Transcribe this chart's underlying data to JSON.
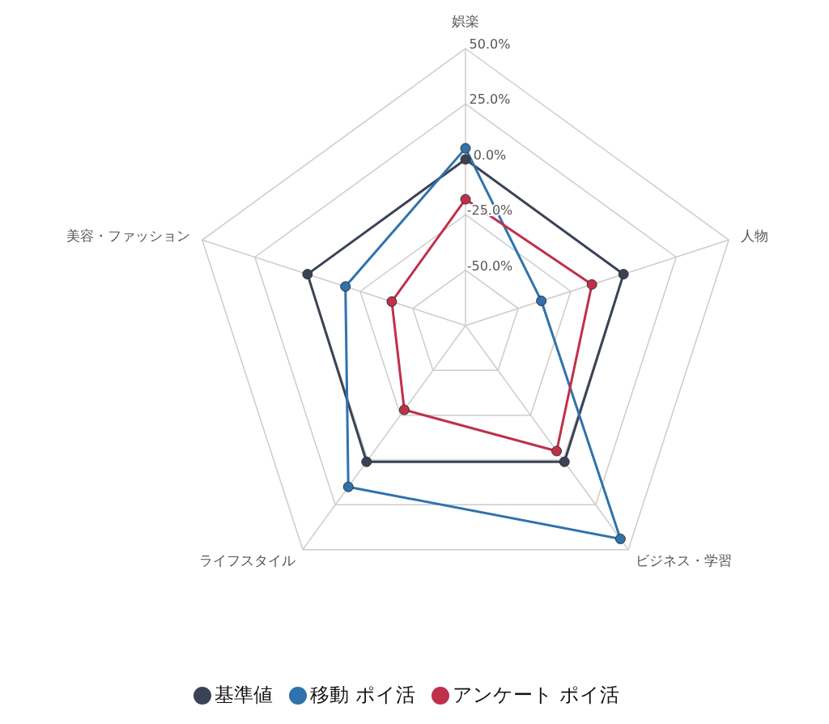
{
  "chart_data": {
    "type": "radar",
    "categories": [
      "娯楽",
      "人物",
      "ビジネス・学習",
      "ライフスタイル",
      "美容・ファッション"
    ],
    "series": [
      {
        "name": "基準値",
        "color": "#3a4256",
        "values": [
          0,
          0,
          1,
          1,
          0
        ]
      },
      {
        "name": "移動 ポイ活",
        "color": "#2f72ad",
        "values": [
          5,
          -39,
          44,
          15,
          -18
        ]
      },
      {
        "name": "アンケート ポイ活",
        "color": "#c0304a",
        "values": [
          -18,
          -15,
          -5,
          -28,
          -40
        ]
      }
    ],
    "ylim": [
      -75,
      50
    ],
    "yticks": [
      {
        "value": -50,
        "label": "-50.0%"
      },
      {
        "value": -25,
        "label": "-25.0%"
      },
      {
        "value": 0,
        "label": "0.0%"
      },
      {
        "value": 25,
        "label": "25.0%"
      },
      {
        "value": 50,
        "label": "50.0%"
      }
    ],
    "grid": true,
    "legend": "bottom",
    "marker": "circle",
    "line_style": "solid"
  }
}
